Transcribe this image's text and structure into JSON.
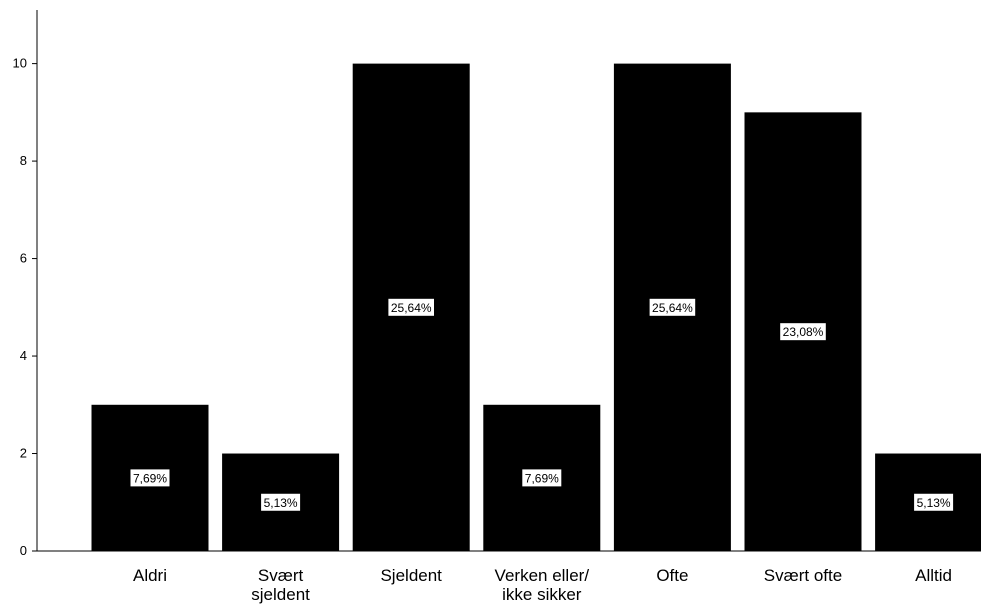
{
  "chart_data": {
    "type": "bar",
    "categories": [
      [
        "Aldri"
      ],
      [
        "Svært",
        "sjeldent"
      ],
      [
        "Sjeldent"
      ],
      [
        "Verken eller/",
        "ikke sikker"
      ],
      [
        "Ofte"
      ],
      [
        "Svært ofte"
      ],
      [
        "Alltid"
      ]
    ],
    "values": [
      3,
      2,
      10,
      3,
      10,
      9,
      2
    ],
    "data_labels": [
      "7,69%",
      "5,13%",
      "25,64%",
      "7,69%",
      "25,64%",
      "23,08%",
      "5,13%"
    ],
    "yticks": [
      0,
      2,
      4,
      6,
      8,
      10
    ],
    "ylim": [
      0,
      11.1
    ],
    "title": "",
    "xlabel": "",
    "ylabel": "",
    "grid": false,
    "colors": {
      "bar": "#000000",
      "label_box": "#ffffff",
      "axis": "#000000"
    }
  }
}
